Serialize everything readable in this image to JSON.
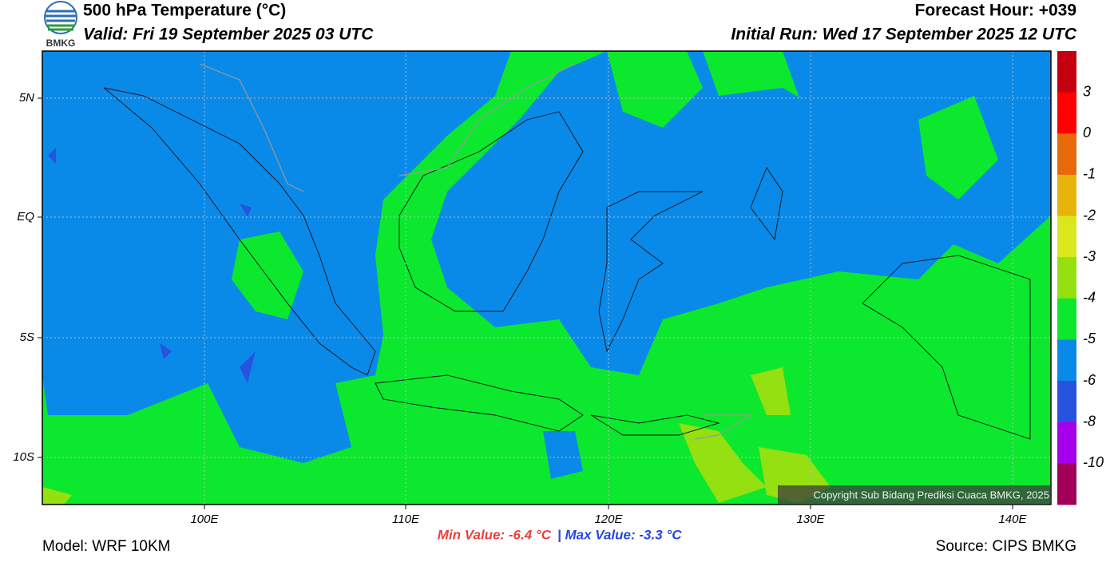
{
  "header": {
    "logo": "BMKG",
    "title": "500 hPa Temperature (°C)",
    "valid": "Valid: Fri 19 September 2025 03 UTC",
    "forecast_hour": "Forecast Hour: +039",
    "initial_run": "Initial Run: Wed 17 September 2025 12 UTC"
  },
  "map": {
    "lat_labels": [
      "5N",
      "EQ",
      "5S",
      "10S"
    ],
    "lon_labels": [
      "100E",
      "110E",
      "120E",
      "130E",
      "140E"
    ],
    "copyright": "Copyright Sub Bidang Prediksi Cuaca BMKG, 2025"
  },
  "colorbar": {
    "colors": [
      "#c40010",
      "#ff0000",
      "#e8680c",
      "#e8b40c",
      "#dce61c",
      "#94e010",
      "#0ce82e",
      "#0a8ae8",
      "#2852e0",
      "#a400ec",
      "#a0005a"
    ],
    "labels": [
      "3",
      "0",
      "-1",
      "-2",
      "-3",
      "-4",
      "-5",
      "-6",
      "-8",
      "-10"
    ]
  },
  "footer": {
    "model": "Model: WRF 10KM",
    "min_value": "Min Value: -6.4 °C",
    "max_value": "| Max Value: -3.3 °C",
    "source": "Source: CIPS BMKG"
  }
}
